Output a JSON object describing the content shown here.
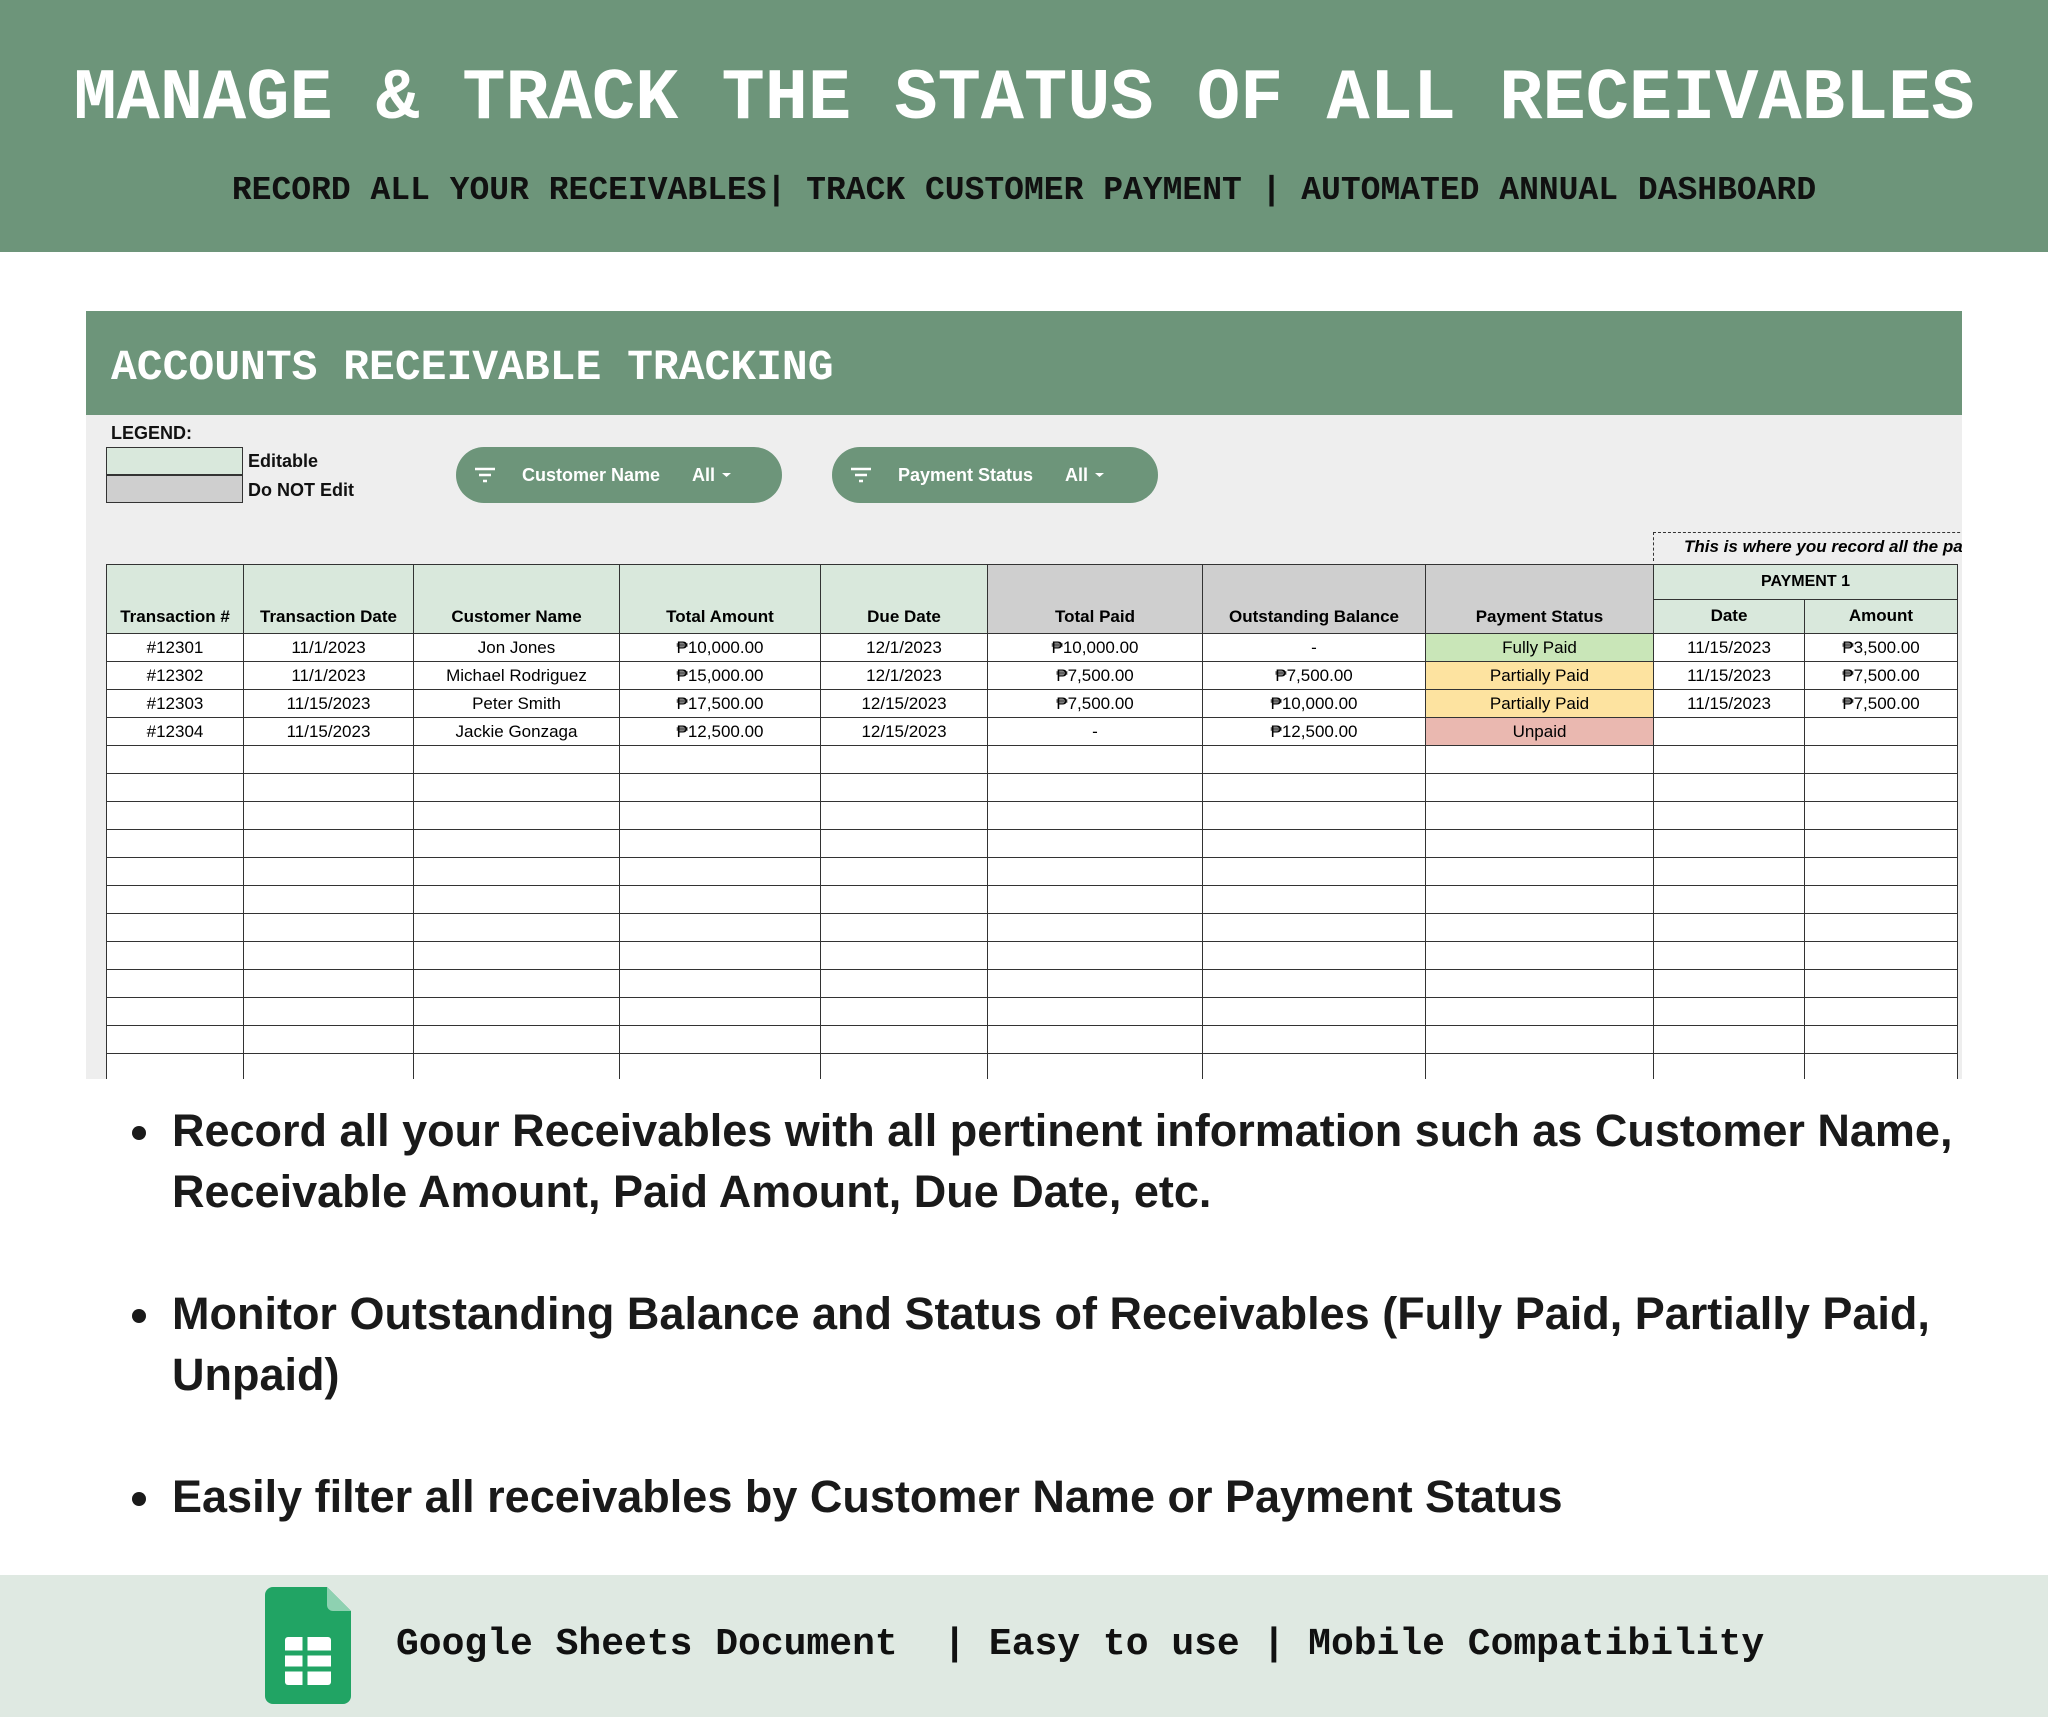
{
  "header": {
    "title": "MANAGE & TRACK THE STATUS OF ALL RECEIVABLES",
    "subtitle": "RECORD ALL YOUR RECEIVABLES| TRACK CUSTOMER PAYMENT | AUTOMATED ANNUAL DASHBOARD"
  },
  "sheet": {
    "title": "ACCOUNTS RECEIVABLE TRACKING",
    "legend": {
      "label": "LEGEND:",
      "items": [
        "Editable",
        "Do NOT Edit"
      ]
    },
    "filters": [
      {
        "label": "Customer Name",
        "value": "All"
      },
      {
        "label": "Payment Status",
        "value": "All"
      }
    ],
    "note": "This is where you record all the pa",
    "table": {
      "columns": [
        "Transaction #",
        "Transaction Date",
        "Customer Name",
        "Total Amount",
        "Due Date",
        "Total Paid",
        "Outstanding Balance",
        "Payment Status",
        "Date",
        "Amount"
      ],
      "group_header": "PAYMENT 1",
      "rows": [
        [
          "#12301",
          "11/1/2023",
          "Jon Jones",
          "₱10,000.00",
          "12/1/2023",
          "₱10,000.00",
          "-",
          "Fully Paid",
          "11/15/2023",
          "₱3,500.00"
        ],
        [
          "#12302",
          "11/1/2023",
          "Michael Rodriguez",
          "₱15,000.00",
          "12/1/2023",
          "₱7,500.00",
          "₱7,500.00",
          "Partially Paid",
          "11/15/2023",
          "₱7,500.00"
        ],
        [
          "#12303",
          "11/15/2023",
          "Peter Smith",
          "₱17,500.00",
          "12/15/2023",
          "₱7,500.00",
          "₱10,000.00",
          "Partially Paid",
          "11/15/2023",
          "₱7,500.00"
        ],
        [
          "#12304",
          "11/15/2023",
          "Jackie Gonzaga",
          "₱12,500.00",
          "12/15/2023",
          "-",
          "₱12,500.00",
          "Unpaid"
        ]
      ]
    }
  },
  "bullets": [
    "Record all your Receivables with all pertinent information such as Customer Name, Receivable Amount, Paid Amount, Due Date, etc.",
    "Monitor Outstanding Balance and Status of Receivables (Fully Paid, Partially Paid, Unpaid)",
    "Easily filter all receivables by Customer Name or Payment Status"
  ],
  "footer": {
    "text": "Google Sheets Document  | Easy to use | Mobile Compatibility"
  }
}
